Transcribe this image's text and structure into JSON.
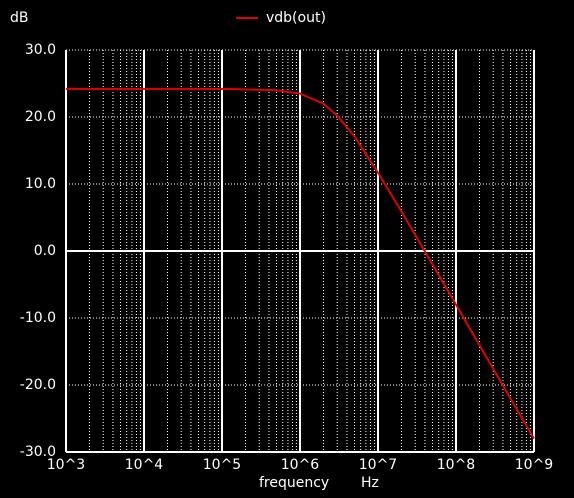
{
  "chart_data": {
    "type": "line",
    "ylabel": "dB",
    "xlabel": "frequency",
    "xunit": "Hz",
    "xscale": "log",
    "grid": true,
    "minor_grid": true,
    "legend": "top",
    "xlim": [
      1000,
      1000000000
    ],
    "ylim": [
      -30,
      30
    ],
    "xticks": [
      {
        "value": 1000,
        "label": "10^3"
      },
      {
        "value": 10000,
        "label": "10^4"
      },
      {
        "value": 100000,
        "label": "10^5"
      },
      {
        "value": 1000000,
        "label": "10^6"
      },
      {
        "value": 10000000,
        "label": "10^7"
      },
      {
        "value": 100000000,
        "label": "10^8"
      },
      {
        "value": 1000000000,
        "label": "10^9"
      }
    ],
    "yticks": [
      {
        "value": 30,
        "label": "30.0"
      },
      {
        "value": 20,
        "label": "20.0"
      },
      {
        "value": 10,
        "label": "10.0"
      },
      {
        "value": 0,
        "label": "0.0"
      },
      {
        "value": -10,
        "label": "-10.0"
      },
      {
        "value": -20,
        "label": "-20.0"
      },
      {
        "value": -30,
        "label": "-30.0"
      }
    ],
    "x": [
      1000,
      10000,
      100000,
      500000,
      1000000,
      2000000,
      3000000,
      5000000,
      10000000,
      20000000,
      50000000,
      100000000,
      300000000,
      1000000000
    ],
    "series": [
      {
        "name": "vdb(out)",
        "color": "#e00000",
        "values": [
          24.2,
          24.2,
          24.2,
          24.0,
          23.5,
          22.0,
          20.2,
          17.1,
          11.7,
          5.9,
          -2.0,
          -8.0,
          -17.6,
          -28.0
        ]
      }
    ]
  }
}
